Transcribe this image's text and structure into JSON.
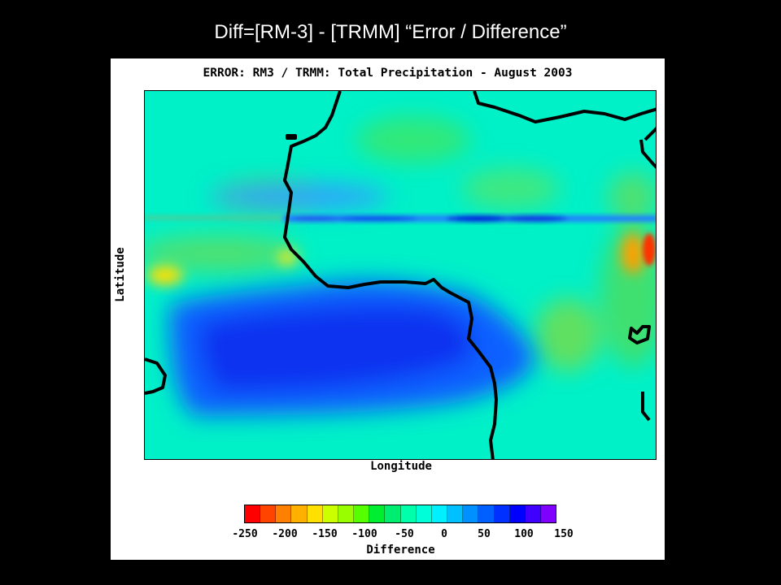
{
  "slide_title": "Diff=[RM-3] - [TRMM] “Error / Difference”",
  "map": {
    "title": "ERROR: RM3 / TRMM: Total Precipitation - August 2003",
    "xlabel": "Longitude",
    "ylabel": "Latitude"
  },
  "colorbar": {
    "label": "Difference",
    "ticks": [
      "-250",
      "-200",
      "-150",
      "-100",
      "-50",
      "0",
      "50",
      "100",
      "150"
    ],
    "range": [
      -250,
      150
    ],
    "colors": [
      "#ff0000",
      "#ff4400",
      "#ff8000",
      "#ffb000",
      "#ffe000",
      "#ccff00",
      "#99ff00",
      "#55ff00",
      "#00ee30",
      "#00ee70",
      "#00ffaa",
      "#00ffd8",
      "#00f0ff",
      "#00c0ff",
      "#0090ff",
      "#0060ff",
      "#0030ff",
      "#0000ff",
      "#4000ff",
      "#8000ff"
    ]
  }
}
